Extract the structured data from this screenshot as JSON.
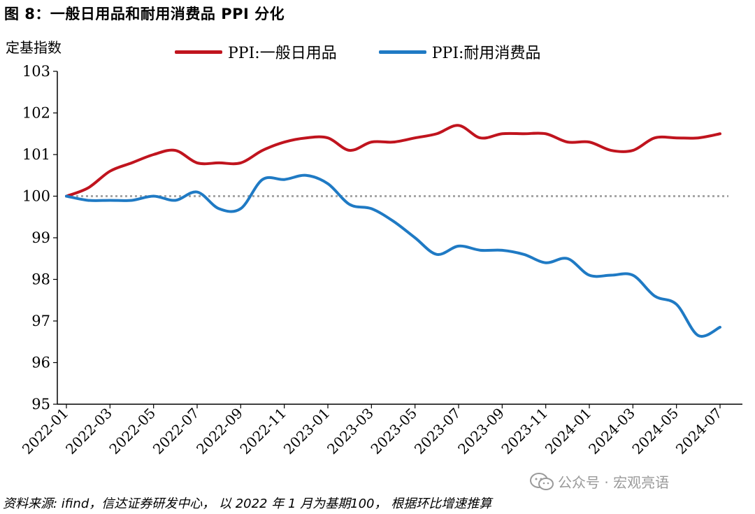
{
  "figure_title": "图 8：一般日用品和耐用消费品 PPI 分化",
  "y_unit_label": "定基指数",
  "source_note": "资料来源: ifind，信达证券研发中心， 以 2022 年 1 月为基期100， 根据环比增速推算",
  "watermark_text": "公众号 · 宏观亮语",
  "colors": {
    "series_red": "#C0141E",
    "series_blue": "#1F7AC4",
    "baseline": "#A6A6A6"
  },
  "chart_data": {
    "type": "line",
    "ylim": [
      95,
      103
    ],
    "yticks": [
      95,
      96,
      97,
      98,
      99,
      100,
      101,
      102,
      103
    ],
    "x": [
      "2022-01",
      "2022-02",
      "2022-03",
      "2022-04",
      "2022-05",
      "2022-06",
      "2022-07",
      "2022-08",
      "2022-09",
      "2022-10",
      "2022-11",
      "2022-12",
      "2023-01",
      "2023-02",
      "2023-03",
      "2023-04",
      "2023-05",
      "2023-06",
      "2023-07",
      "2023-08",
      "2023-09",
      "2023-10",
      "2023-11",
      "2023-12",
      "2024-01",
      "2024-02",
      "2024-03",
      "2024-04",
      "2024-05",
      "2024-06",
      "2024-07"
    ],
    "xtick_labels": [
      "2022-01",
      "2022-03",
      "2022-05",
      "2022-07",
      "2022-09",
      "2022-11",
      "2023-01",
      "2023-03",
      "2023-05",
      "2023-07",
      "2023-09",
      "2023-11",
      "2024-01",
      "2024-03",
      "2024-05",
      "2024-07"
    ],
    "baseline": 100,
    "series": [
      {
        "name": "PPI:一般日用品",
        "color": "#C0141E",
        "values": [
          100.0,
          100.2,
          100.6,
          100.8,
          101.0,
          101.1,
          100.8,
          100.8,
          100.8,
          101.1,
          101.3,
          101.4,
          101.4,
          101.1,
          101.3,
          101.3,
          101.4,
          101.5,
          101.7,
          101.4,
          101.5,
          101.5,
          101.5,
          101.3,
          101.3,
          101.1,
          101.1,
          101.4,
          101.4,
          101.4,
          101.5
        ]
      },
      {
        "name": "PPI:耐用消费品",
        "color": "#1F7AC4",
        "values": [
          100.0,
          99.9,
          99.9,
          99.9,
          100.0,
          99.9,
          100.1,
          99.7,
          99.7,
          100.4,
          100.4,
          100.5,
          100.3,
          99.8,
          99.7,
          99.4,
          99.0,
          98.6,
          98.8,
          98.7,
          98.7,
          98.6,
          98.4,
          98.5,
          98.1,
          98.1,
          98.1,
          97.6,
          97.4,
          96.65,
          96.85
        ]
      }
    ]
  }
}
